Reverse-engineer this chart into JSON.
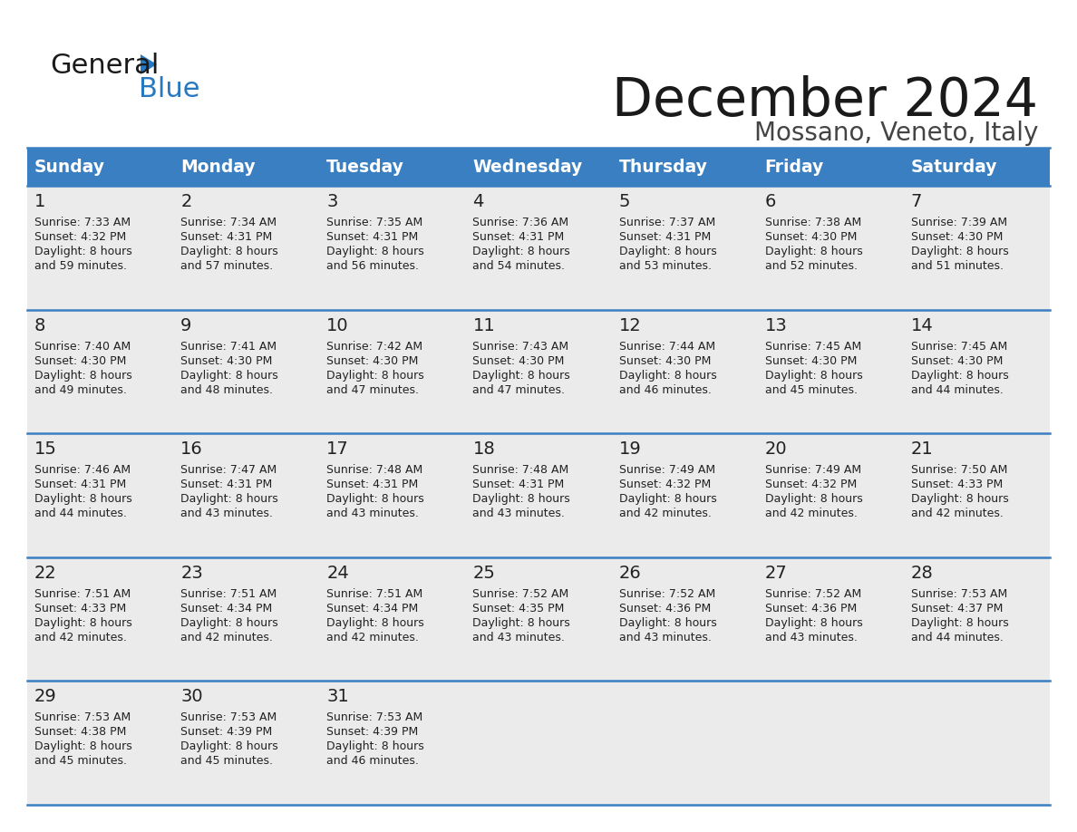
{
  "title": "December 2024",
  "subtitle": "Mossano, Veneto, Italy",
  "header_bg_color": "#3a7fc1",
  "header_text_color": "#ffffff",
  "header_days": [
    "Sunday",
    "Monday",
    "Tuesday",
    "Wednesday",
    "Thursday",
    "Friday",
    "Saturday"
  ],
  "row_bg_color": "#ebebeb",
  "border_color": "#3a7fc1",
  "text_color": "#222222",
  "days": [
    {
      "day": 1,
      "col": 0,
      "row": 0,
      "sunrise": "7:33 AM",
      "sunset": "4:32 PM",
      "daylight": "8 hours and 59 minutes."
    },
    {
      "day": 2,
      "col": 1,
      "row": 0,
      "sunrise": "7:34 AM",
      "sunset": "4:31 PM",
      "daylight": "8 hours and 57 minutes."
    },
    {
      "day": 3,
      "col": 2,
      "row": 0,
      "sunrise": "7:35 AM",
      "sunset": "4:31 PM",
      "daylight": "8 hours and 56 minutes."
    },
    {
      "day": 4,
      "col": 3,
      "row": 0,
      "sunrise": "7:36 AM",
      "sunset": "4:31 PM",
      "daylight": "8 hours and 54 minutes."
    },
    {
      "day": 5,
      "col": 4,
      "row": 0,
      "sunrise": "7:37 AM",
      "sunset": "4:31 PM",
      "daylight": "8 hours and 53 minutes."
    },
    {
      "day": 6,
      "col": 5,
      "row": 0,
      "sunrise": "7:38 AM",
      "sunset": "4:30 PM",
      "daylight": "8 hours and 52 minutes."
    },
    {
      "day": 7,
      "col": 6,
      "row": 0,
      "sunrise": "7:39 AM",
      "sunset": "4:30 PM",
      "daylight": "8 hours and 51 minutes."
    },
    {
      "day": 8,
      "col": 0,
      "row": 1,
      "sunrise": "7:40 AM",
      "sunset": "4:30 PM",
      "daylight": "8 hours and 49 minutes."
    },
    {
      "day": 9,
      "col": 1,
      "row": 1,
      "sunrise": "7:41 AM",
      "sunset": "4:30 PM",
      "daylight": "8 hours and 48 minutes."
    },
    {
      "day": 10,
      "col": 2,
      "row": 1,
      "sunrise": "7:42 AM",
      "sunset": "4:30 PM",
      "daylight": "8 hours and 47 minutes."
    },
    {
      "day": 11,
      "col": 3,
      "row": 1,
      "sunrise": "7:43 AM",
      "sunset": "4:30 PM",
      "daylight": "8 hours and 47 minutes."
    },
    {
      "day": 12,
      "col": 4,
      "row": 1,
      "sunrise": "7:44 AM",
      "sunset": "4:30 PM",
      "daylight": "8 hours and 46 minutes."
    },
    {
      "day": 13,
      "col": 5,
      "row": 1,
      "sunrise": "7:45 AM",
      "sunset": "4:30 PM",
      "daylight": "8 hours and 45 minutes."
    },
    {
      "day": 14,
      "col": 6,
      "row": 1,
      "sunrise": "7:45 AM",
      "sunset": "4:30 PM",
      "daylight": "8 hours and 44 minutes."
    },
    {
      "day": 15,
      "col": 0,
      "row": 2,
      "sunrise": "7:46 AM",
      "sunset": "4:31 PM",
      "daylight": "8 hours and 44 minutes."
    },
    {
      "day": 16,
      "col": 1,
      "row": 2,
      "sunrise": "7:47 AM",
      "sunset": "4:31 PM",
      "daylight": "8 hours and 43 minutes."
    },
    {
      "day": 17,
      "col": 2,
      "row": 2,
      "sunrise": "7:48 AM",
      "sunset": "4:31 PM",
      "daylight": "8 hours and 43 minutes."
    },
    {
      "day": 18,
      "col": 3,
      "row": 2,
      "sunrise": "7:48 AM",
      "sunset": "4:31 PM",
      "daylight": "8 hours and 43 minutes."
    },
    {
      "day": 19,
      "col": 4,
      "row": 2,
      "sunrise": "7:49 AM",
      "sunset": "4:32 PM",
      "daylight": "8 hours and 42 minutes."
    },
    {
      "day": 20,
      "col": 5,
      "row": 2,
      "sunrise": "7:49 AM",
      "sunset": "4:32 PM",
      "daylight": "8 hours and 42 minutes."
    },
    {
      "day": 21,
      "col": 6,
      "row": 2,
      "sunrise": "7:50 AM",
      "sunset": "4:33 PM",
      "daylight": "8 hours and 42 minutes."
    },
    {
      "day": 22,
      "col": 0,
      "row": 3,
      "sunrise": "7:51 AM",
      "sunset": "4:33 PM",
      "daylight": "8 hours and 42 minutes."
    },
    {
      "day": 23,
      "col": 1,
      "row": 3,
      "sunrise": "7:51 AM",
      "sunset": "4:34 PM",
      "daylight": "8 hours and 42 minutes."
    },
    {
      "day": 24,
      "col": 2,
      "row": 3,
      "sunrise": "7:51 AM",
      "sunset": "4:34 PM",
      "daylight": "8 hours and 42 minutes."
    },
    {
      "day": 25,
      "col": 3,
      "row": 3,
      "sunrise": "7:52 AM",
      "sunset": "4:35 PM",
      "daylight": "8 hours and 43 minutes."
    },
    {
      "day": 26,
      "col": 4,
      "row": 3,
      "sunrise": "7:52 AM",
      "sunset": "4:36 PM",
      "daylight": "8 hours and 43 minutes."
    },
    {
      "day": 27,
      "col": 5,
      "row": 3,
      "sunrise": "7:52 AM",
      "sunset": "4:36 PM",
      "daylight": "8 hours and 43 minutes."
    },
    {
      "day": 28,
      "col": 6,
      "row": 3,
      "sunrise": "7:53 AM",
      "sunset": "4:37 PM",
      "daylight": "8 hours and 44 minutes."
    },
    {
      "day": 29,
      "col": 0,
      "row": 4,
      "sunrise": "7:53 AM",
      "sunset": "4:38 PM",
      "daylight": "8 hours and 45 minutes."
    },
    {
      "day": 30,
      "col": 1,
      "row": 4,
      "sunrise": "7:53 AM",
      "sunset": "4:39 PM",
      "daylight": "8 hours and 45 minutes."
    },
    {
      "day": 31,
      "col": 2,
      "row": 4,
      "sunrise": "7:53 AM",
      "sunset": "4:39 PM",
      "daylight": "8 hours and 46 minutes."
    }
  ]
}
